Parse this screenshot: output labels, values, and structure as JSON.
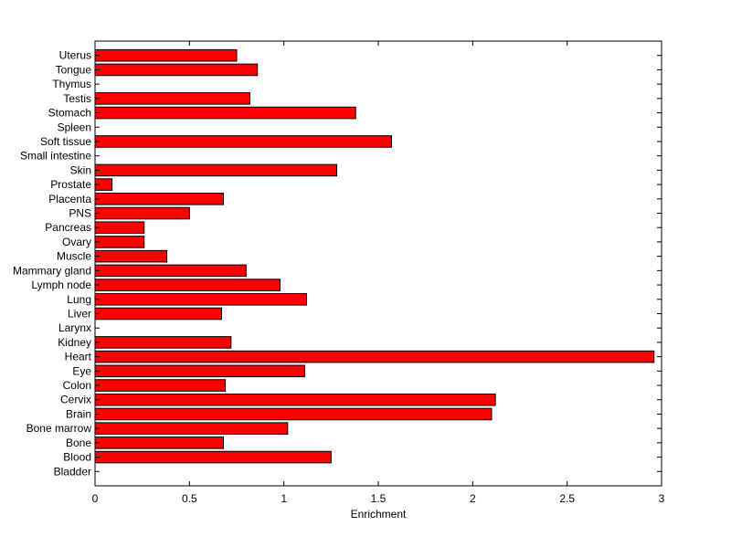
{
  "chart_data": {
    "type": "bar",
    "orientation": "horizontal",
    "title": "",
    "xlabel": "Enrichment",
    "ylabel": "",
    "xlim": [
      0,
      3
    ],
    "xticks": [
      0,
      0.5,
      1,
      1.5,
      2,
      2.5,
      3
    ],
    "xtick_labels": [
      "0",
      "0.5",
      "1",
      "1.5",
      "2",
      "2.5",
      "3"
    ],
    "grid": false,
    "bar_color": "#ff0000",
    "categories": [
      "Bladder",
      "Blood",
      "Bone",
      "Bone marrow",
      "Brain",
      "Cervix",
      "Colon",
      "Eye",
      "Heart",
      "Kidney",
      "Larynx",
      "Liver",
      "Lung",
      "Lymph node",
      "Mammary gland",
      "Muscle",
      "Ovary",
      "Pancreas",
      "PNS",
      "Placenta",
      "Prostate",
      "Skin",
      "Small intestine",
      "Soft tissue",
      "Spleen",
      "Stomach",
      "Testis",
      "Thymus",
      "Tongue",
      "Uterus"
    ],
    "values": [
      0,
      1.25,
      0.68,
      1.02,
      2.1,
      2.12,
      0.69,
      1.11,
      2.96,
      0.72,
      0,
      0.67,
      1.12,
      0.98,
      0.8,
      0.38,
      0.26,
      0.26,
      0.5,
      0.68,
      0.09,
      1.28,
      0,
      1.57,
      0,
      1.38,
      0.82,
      0,
      0.86,
      0.75
    ]
  }
}
